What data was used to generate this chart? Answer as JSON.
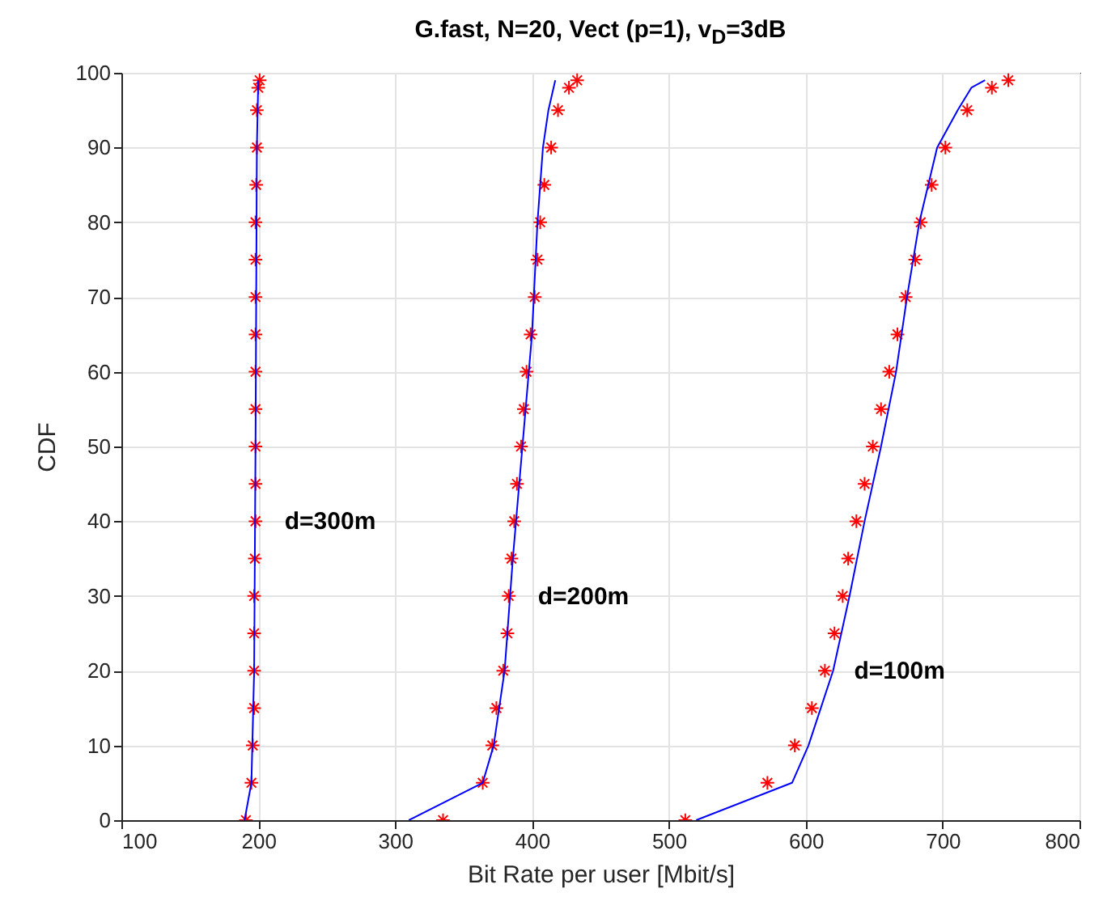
{
  "chart_data": {
    "type": "line",
    "title": "G.fast, N=20, Vect (p=1), v$_{D}$=3dB",
    "xlabel": "Bit Rate per user [Mbit/s]",
    "ylabel": "CDF",
    "xlim": [
      100,
      800
    ],
    "xticks": [
      100,
      200,
      300,
      400,
      500,
      600,
      700,
      800
    ],
    "ylim": [
      0,
      100
    ],
    "yticks": [
      0,
      10,
      20,
      30,
      40,
      50,
      60,
      70,
      80,
      90,
      100
    ],
    "grid": true,
    "series": [
      {
        "color": "#0000ff",
        "x": [
          190,
          195,
          197,
          198,
          199,
          200
        ],
        "values": [
          0,
          5,
          20,
          50,
          90,
          99
        ]
      },
      {
        "color": "#0000ff",
        "x": [
          310,
          364,
          372,
          380,
          386,
          393,
          400,
          404,
          408,
          412,
          417
        ],
        "values": [
          0,
          5,
          10,
          20,
          35,
          50,
          65,
          80,
          90,
          95,
          99
        ]
      },
      {
        "color": "#0000ff",
        "x": [
          520,
          590,
          602,
          620,
          632,
          643,
          655,
          666,
          674,
          683,
          696,
          711,
          721,
          731
        ],
        "values": [
          0,
          5,
          10,
          20,
          30,
          40,
          50,
          60,
          70,
          80,
          90,
          95,
          98,
          99
        ]
      },
      {
        "type": "scatter",
        "name": "d=300m",
        "color": "#ff0000",
        "marker": "cross",
        "x": [
          191,
          195,
          196,
          197,
          197,
          197,
          197,
          197.5,
          198,
          198,
          198,
          198,
          198,
          198,
          198,
          198,
          198,
          198.5,
          199,
          199,
          200,
          201
        ],
        "values": [
          0,
          5,
          10,
          15,
          20,
          25,
          30,
          35,
          40,
          45,
          50,
          55,
          60,
          65,
          70,
          75,
          80,
          85,
          90,
          95,
          98,
          99
        ]
      },
      {
        "type": "scatter",
        "name": "d=200m",
        "color": "#ff0000",
        "marker": "cross",
        "x": [
          335,
          364,
          371,
          374,
          379,
          382,
          383,
          385,
          387,
          389,
          392,
          394,
          396,
          399,
          402,
          404,
          406,
          409,
          414,
          419,
          427,
          433
        ],
        "values": [
          0,
          5,
          10,
          15,
          20,
          25,
          30,
          35,
          40,
          45,
          50,
          55,
          60,
          65,
          70,
          75,
          80,
          85,
          90,
          95,
          98,
          99
        ]
      },
      {
        "type": "scatter",
        "name": "d=100m",
        "color": "#ff0000",
        "marker": "cross",
        "x": [
          512,
          572,
          592,
          604.5,
          614,
          621,
          627,
          631,
          637,
          643,
          649,
          655,
          661,
          667,
          673,
          680,
          684,
          692,
          702,
          718,
          736,
          748
        ],
        "values": [
          0,
          5,
          10,
          15,
          20,
          25,
          30,
          35,
          40,
          45,
          50,
          55,
          60,
          65,
          70,
          75,
          80,
          85,
          90,
          95,
          98,
          99
        ]
      }
    ]
  }
}
